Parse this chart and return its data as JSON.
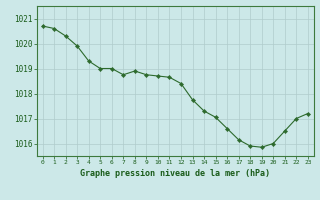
{
  "x": [
    0,
    1,
    2,
    3,
    4,
    5,
    6,
    7,
    8,
    9,
    10,
    11,
    12,
    13,
    14,
    15,
    16,
    17,
    18,
    19,
    20,
    21,
    22,
    23
  ],
  "y": [
    1020.7,
    1020.6,
    1020.3,
    1019.9,
    1019.3,
    1019.0,
    1019.0,
    1018.75,
    1018.9,
    1018.75,
    1018.7,
    1018.65,
    1018.4,
    1017.75,
    1017.3,
    1017.05,
    1016.6,
    1016.15,
    1015.9,
    1015.85,
    1016.0,
    1016.5,
    1017.0,
    1017.2
  ],
  "line_color": "#2d6a2d",
  "marker_color": "#2d6a2d",
  "bg_color": "#cce8e8",
  "grid_color": "#b0cccc",
  "xlabel": "Graphe pression niveau de la mer (hPa)",
  "xlabel_color": "#1a5c1a",
  "tick_color": "#1a5c1a",
  "ylim": [
    1015.5,
    1021.5
  ],
  "yticks": [
    1016,
    1017,
    1018,
    1019,
    1020,
    1021
  ],
  "xticks": [
    0,
    1,
    2,
    3,
    4,
    5,
    6,
    7,
    8,
    9,
    10,
    11,
    12,
    13,
    14,
    15,
    16,
    17,
    18,
    19,
    20,
    21,
    22,
    23
  ]
}
